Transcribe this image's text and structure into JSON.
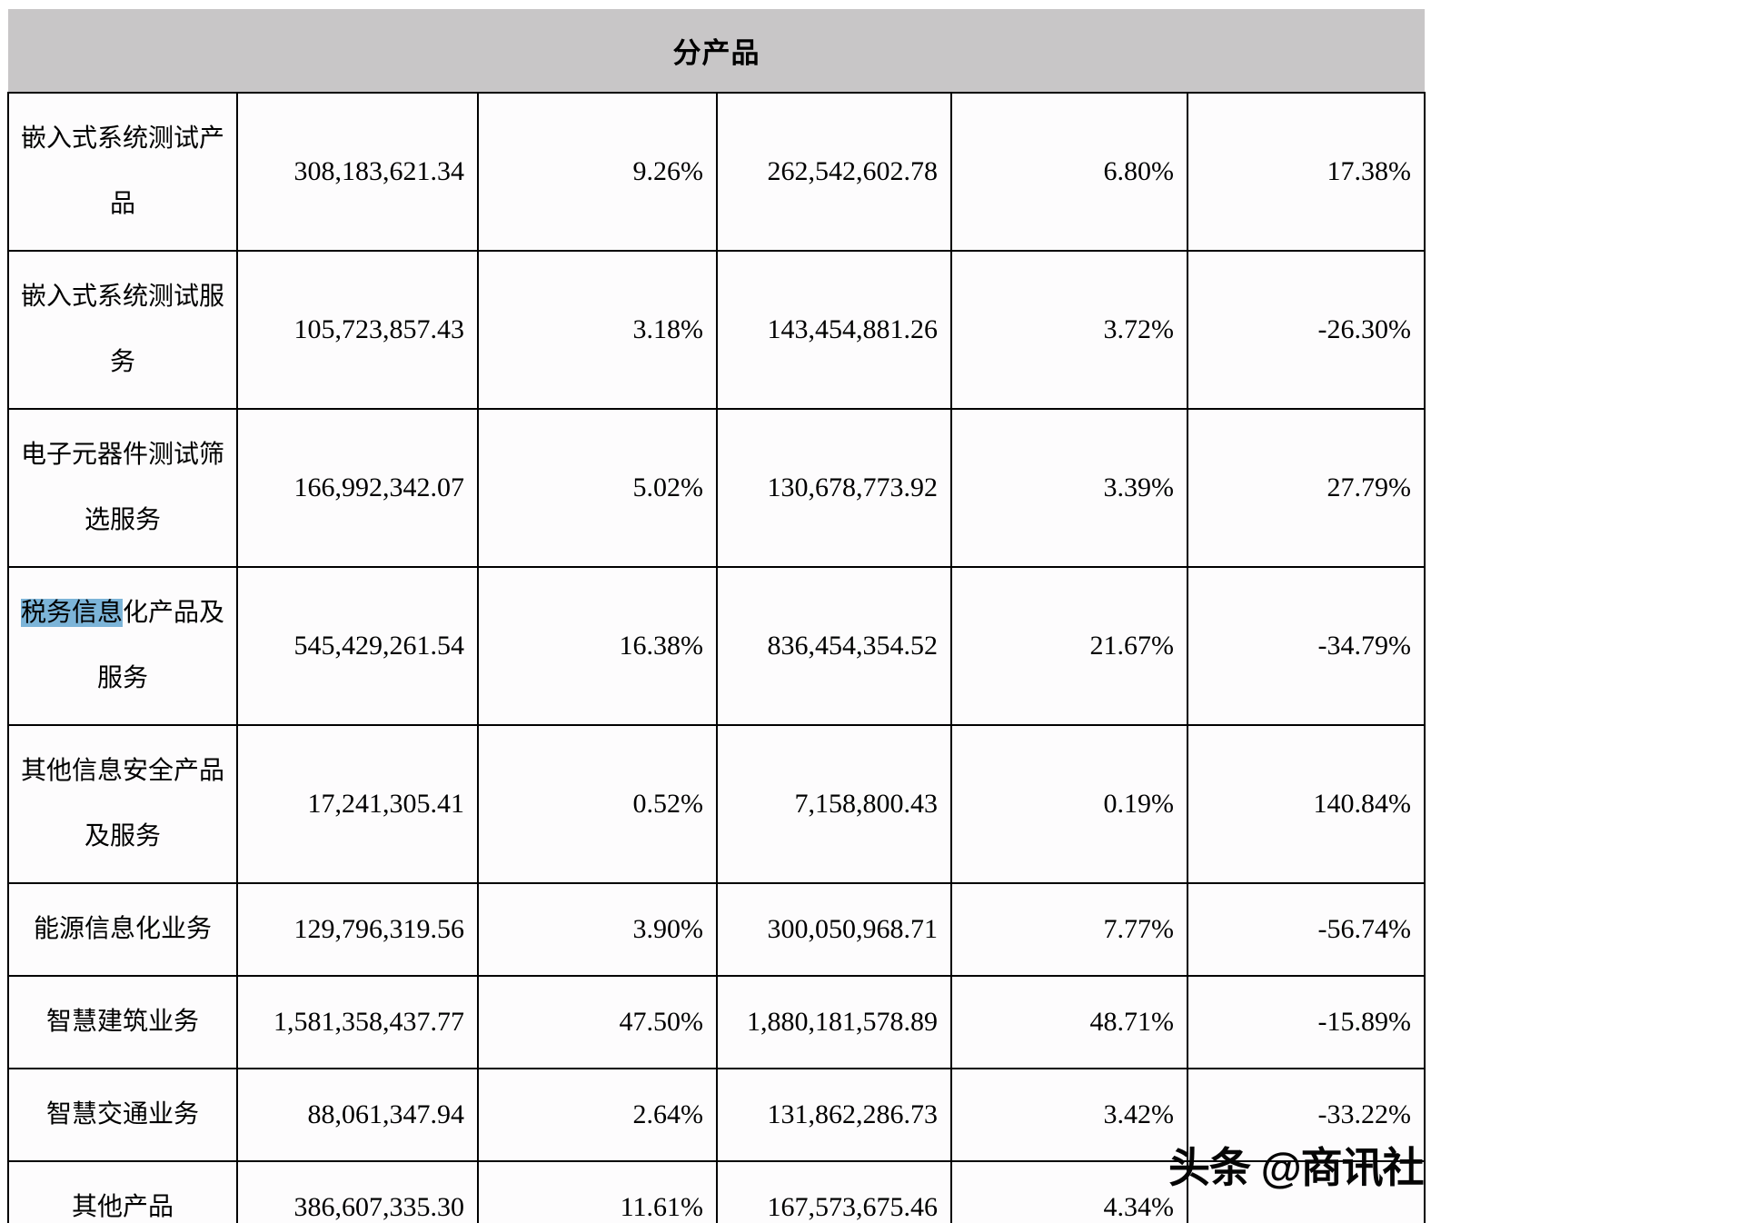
{
  "header": {
    "title": "分产品"
  },
  "colors": {
    "header_bg": "#c8c6c7",
    "highlight": "#7cb4d8",
    "border": "#000000"
  },
  "table": {
    "rows": [
      {
        "name": [
          {
            "text": "嵌入式系统测试产品",
            "hl": false
          }
        ],
        "values": [
          "308,183,621.34",
          "9.26%",
          "262,542,602.78",
          "6.80%",
          "17.38%"
        ]
      },
      {
        "name": [
          {
            "text": "嵌入式系统测试服务",
            "hl": false
          }
        ],
        "values": [
          "105,723,857.43",
          "3.18%",
          "143,454,881.26",
          "3.72%",
          "-26.30%"
        ]
      },
      {
        "name": [
          {
            "text": "电子元器件测试筛选服务",
            "hl": false
          }
        ],
        "values": [
          "166,992,342.07",
          "5.02%",
          "130,678,773.92",
          "3.39%",
          "27.79%"
        ]
      },
      {
        "name": [
          {
            "text": "税务信息",
            "hl": true
          },
          {
            "text": "化产品及服务",
            "hl": false
          }
        ],
        "values": [
          "545,429,261.54",
          "16.38%",
          "836,454,354.52",
          "21.67%",
          "-34.79%"
        ]
      },
      {
        "name": [
          {
            "text": "其他信息安全产品及服务",
            "hl": false
          }
        ],
        "values": [
          "17,241,305.41",
          "0.52%",
          "7,158,800.43",
          "0.19%",
          "140.84%"
        ]
      },
      {
        "name": [
          {
            "text": "能源信息化业务",
            "hl": false
          }
        ],
        "values": [
          "129,796,319.56",
          "3.90%",
          "300,050,968.71",
          "7.77%",
          "-56.74%"
        ]
      },
      {
        "name": [
          {
            "text": "智慧建筑业务",
            "hl": false
          }
        ],
        "values": [
          "1,581,358,437.77",
          "47.50%",
          "1,880,181,578.89",
          "48.71%",
          "-15.89%"
        ]
      },
      {
        "name": [
          {
            "text": "智慧交通业务",
            "hl": false
          }
        ],
        "values": [
          "88,061,347.94",
          "2.64%",
          "131,862,286.73",
          "3.42%",
          "-33.22%"
        ]
      },
      {
        "name": [
          {
            "text": "其他产品",
            "hl": false
          }
        ],
        "values": [
          "386,607,335.30",
          "11.61%",
          "167,573,675.46",
          "4.34%",
          ""
        ]
      }
    ]
  },
  "watermark": {
    "text": "头条 @商讯社"
  }
}
